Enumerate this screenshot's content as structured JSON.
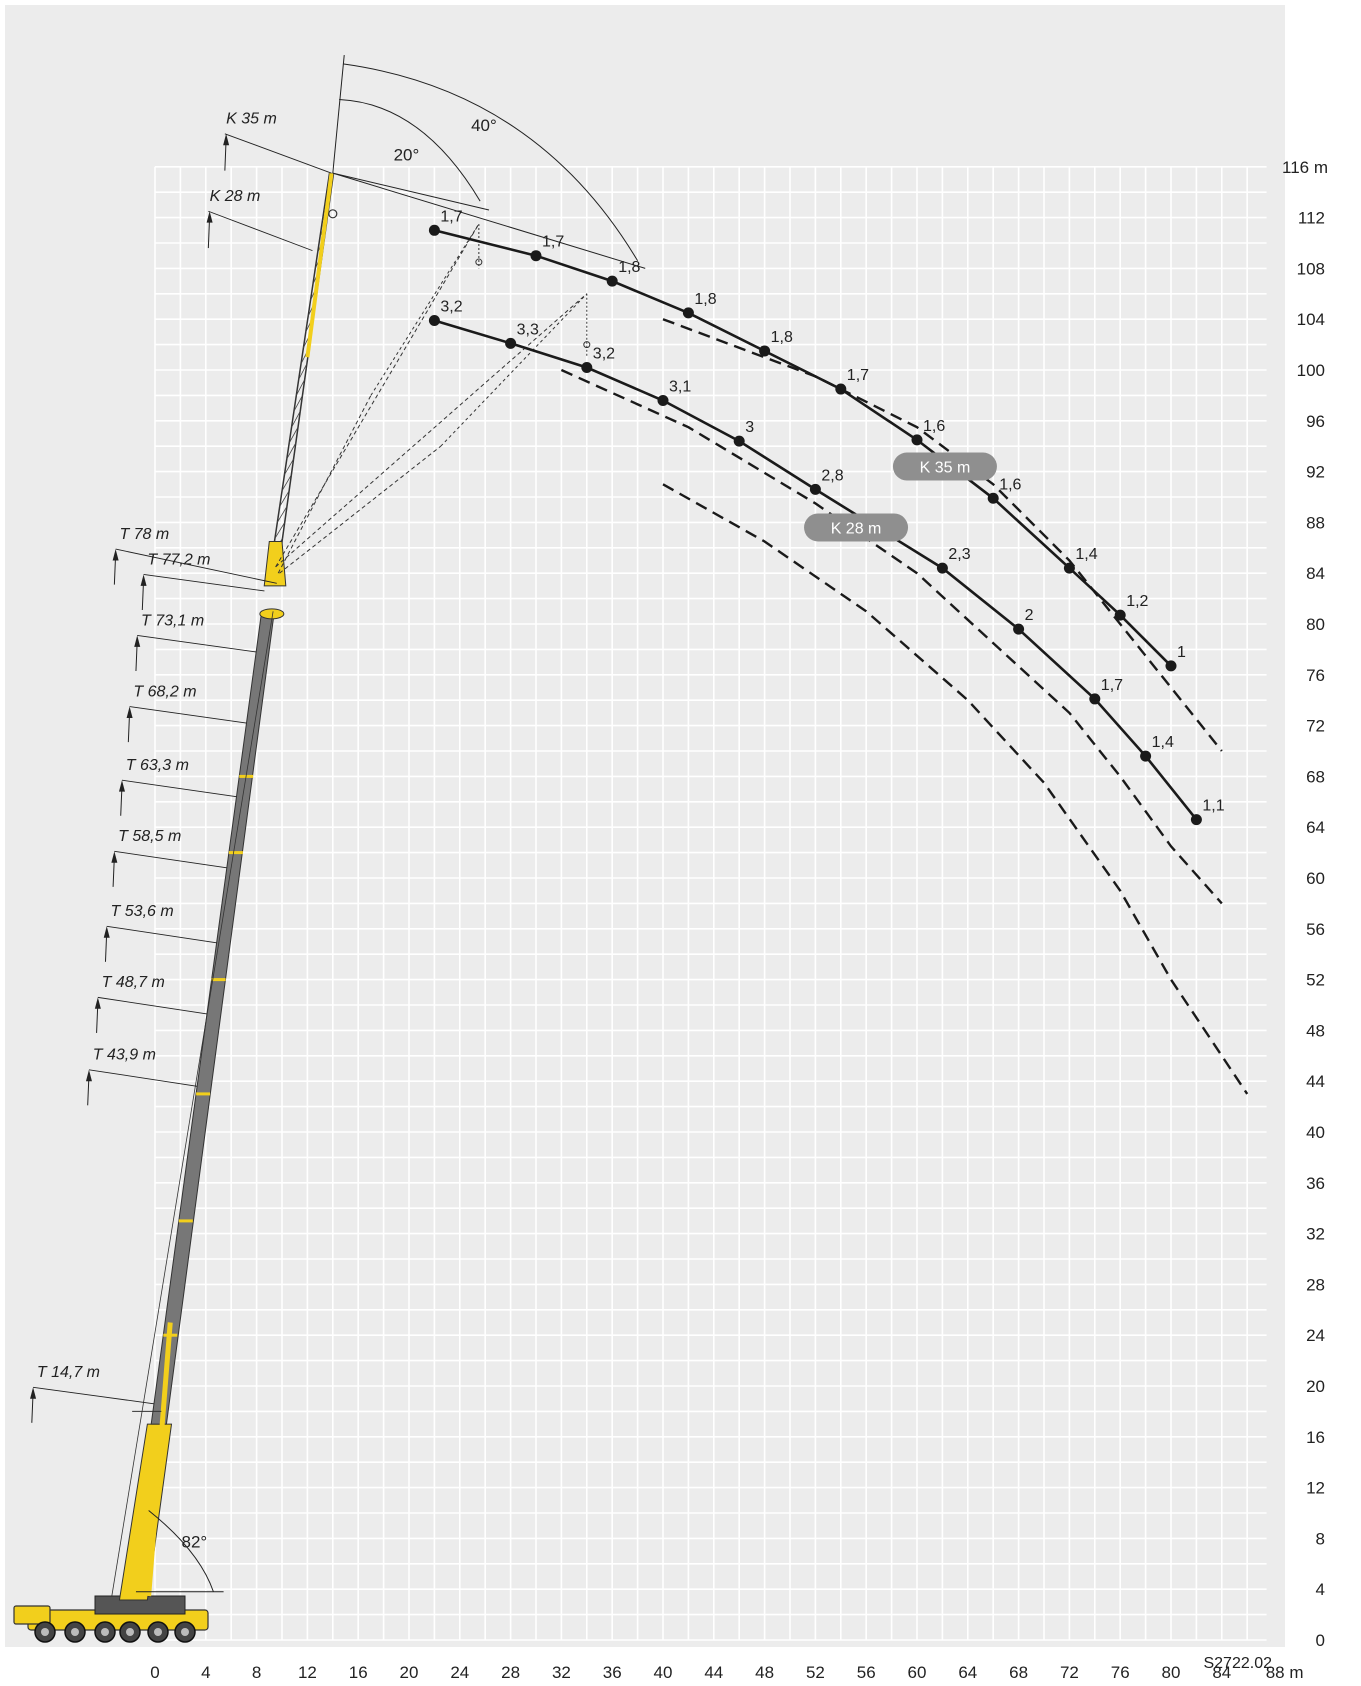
{
  "diagram": {
    "id_code": "S2722.02",
    "x_axis": {
      "unit_label": "88 m",
      "ticks": [
        0,
        4,
        8,
        12,
        16,
        20,
        24,
        28,
        32,
        36,
        40,
        44,
        48,
        52,
        56,
        60,
        64,
        68,
        72,
        76,
        80,
        84
      ]
    },
    "y_axis": {
      "unit_label": "116 m",
      "ticks": [
        0,
        4,
        8,
        12,
        16,
        20,
        24,
        28,
        32,
        36,
        40,
        44,
        48,
        52,
        56,
        60,
        64,
        68,
        72,
        76,
        80,
        84,
        88,
        92,
        96,
        100,
        104,
        108,
        112
      ]
    },
    "angles": {
      "boom": "82°",
      "jib_small": "20°",
      "jib_large": "40°"
    },
    "telescope_labels": [
      "T 78 m",
      "T 77,2 m",
      "T 73,1 m",
      "T 68,2 m",
      "T 63,3 m",
      "T 58,5 m",
      "T 53,6 m",
      "T 48,7 m",
      "T 43,9 m",
      "T 14,7 m"
    ],
    "jib_labels": [
      "K 35 m",
      "K 28 m"
    ],
    "badges": [
      "K 35 m",
      "K 28 m"
    ],
    "colors": {
      "grid_bg": "#ececec",
      "grid_line": "#ffffff",
      "boom": "#777777",
      "crane_yellow": "#f2cf1c",
      "badge": "#8f8f8f",
      "curve": "#1a1a1a"
    }
  },
  "chart_data": {
    "type": "line",
    "xlabel": "m",
    "ylabel": "m",
    "xlim": [
      0,
      88
    ],
    "ylim": [
      0,
      116
    ],
    "series": [
      {
        "name": "K 35 m",
        "x": [
          22,
          30,
          36,
          42,
          48,
          54,
          60,
          66,
          72,
          76,
          80
        ],
        "y": [
          111,
          109,
          107,
          104.5,
          101.5,
          98.5,
          94.5,
          89.9,
          84.4,
          80.7,
          76.7
        ],
        "labels": [
          "1,7",
          "1,7",
          "1,8",
          "1,8",
          "1,8",
          "1,7",
          "1,6",
          "1,6",
          "1,4",
          "1,2",
          "1"
        ]
      },
      {
        "name": "K 28 m",
        "x": [
          22,
          28,
          34,
          40,
          46,
          52,
          62,
          68,
          74,
          78,
          82
        ],
        "y": [
          103.9,
          102.1,
          100.2,
          97.6,
          94.4,
          90.6,
          84.4,
          79.6,
          74.1,
          69.6,
          64.6
        ],
        "labels": [
          "3,2",
          "3,3",
          "3,2",
          "3,1",
          "3",
          "2,8",
          "2,3",
          "2",
          "1,7",
          "1,4",
          "1,1"
        ]
      }
    ]
  }
}
